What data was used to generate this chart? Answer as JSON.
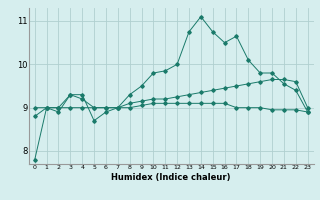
{
  "xlabel": "Humidex (Indice chaleur)",
  "background_color": "#d6eeee",
  "line_color": "#1a7a6a",
  "grid_color": "#b0d0d0",
  "xlim": [
    -0.5,
    23.5
  ],
  "ylim": [
    7.7,
    11.3
  ],
  "xticks": [
    0,
    1,
    2,
    3,
    4,
    5,
    6,
    7,
    8,
    9,
    10,
    11,
    12,
    13,
    14,
    15,
    16,
    17,
    18,
    19,
    20,
    21,
    22,
    23
  ],
  "yticks": [
    8,
    9,
    10,
    11
  ],
  "line1": [
    7.8,
    9.0,
    9.0,
    9.3,
    9.3,
    8.7,
    8.9,
    9.0,
    9.3,
    9.5,
    9.8,
    9.85,
    10.0,
    10.75,
    11.1,
    10.75,
    10.5,
    10.65,
    10.1,
    9.8,
    9.8,
    9.55,
    9.4,
    8.9
  ],
  "line2": [
    8.8,
    9.0,
    8.9,
    9.3,
    9.2,
    9.0,
    9.0,
    9.0,
    9.1,
    9.15,
    9.2,
    9.2,
    9.25,
    9.3,
    9.35,
    9.4,
    9.45,
    9.5,
    9.55,
    9.6,
    9.65,
    9.65,
    9.6,
    9.0
  ],
  "line3": [
    9.0,
    9.0,
    9.0,
    9.0,
    9.0,
    9.0,
    9.0,
    9.0,
    9.0,
    9.05,
    9.1,
    9.1,
    9.1,
    9.1,
    9.1,
    9.1,
    9.1,
    9.0,
    9.0,
    9.0,
    8.95,
    8.95,
    8.95,
    8.9
  ]
}
